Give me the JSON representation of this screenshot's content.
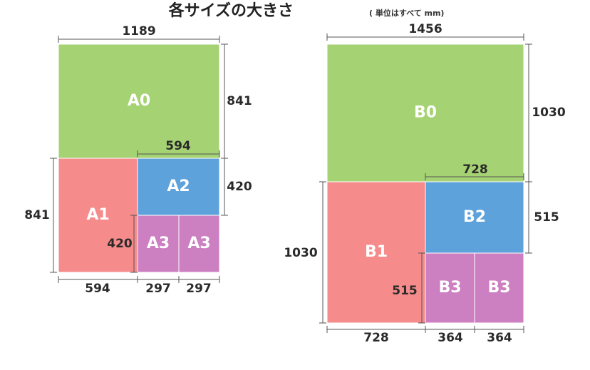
{
  "title": "各サイズの大きさ",
  "subtitle": "( 単位はすべて mm)",
  "diagrams": [
    {
      "sheets": [
        "A0",
        "A1",
        "A2",
        "A3",
        "A3"
      ],
      "dimensions": [
        1189,
        841,
        594,
        420,
        420,
        841,
        594,
        297,
        297
      ]
    },
    {
      "sheets": [
        "B0",
        "B1",
        "B2",
        "B3",
        "B3"
      ],
      "dimensions": [
        1456,
        1030,
        728,
        515,
        515,
        1030,
        728,
        364,
        364
      ]
    }
  ]
}
